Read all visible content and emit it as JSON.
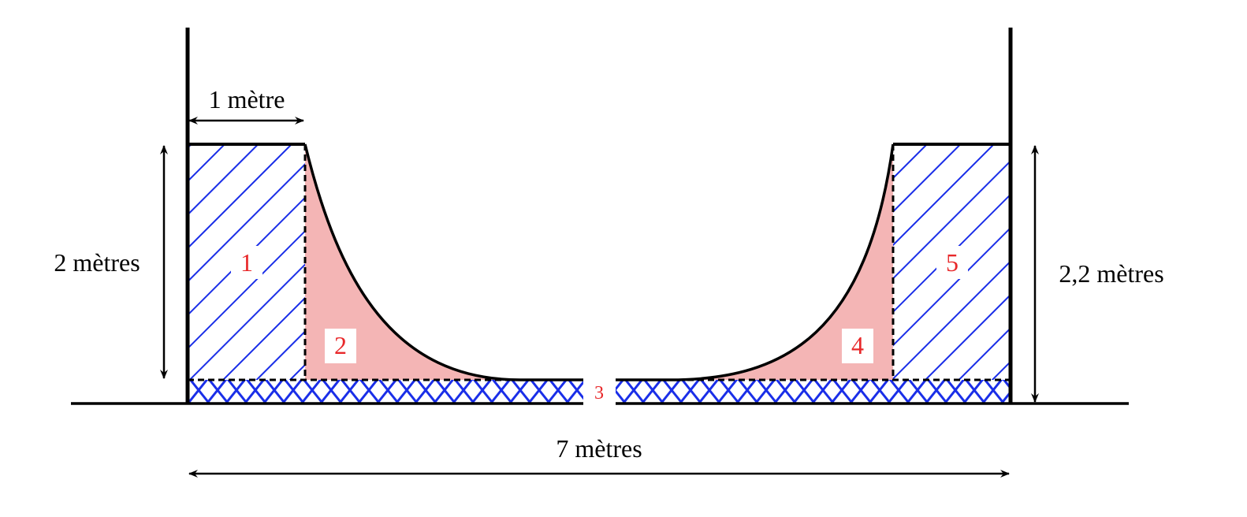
{
  "dimensions": {
    "top_width": "1 mètre",
    "left_height": "2 mètres",
    "right_height": "2,2 mètres",
    "total_width": "7 mètres"
  },
  "regions": [
    {
      "label": "1"
    },
    {
      "label": "2"
    },
    {
      "label": "3"
    },
    {
      "label": "4"
    },
    {
      "label": "5"
    }
  ]
}
